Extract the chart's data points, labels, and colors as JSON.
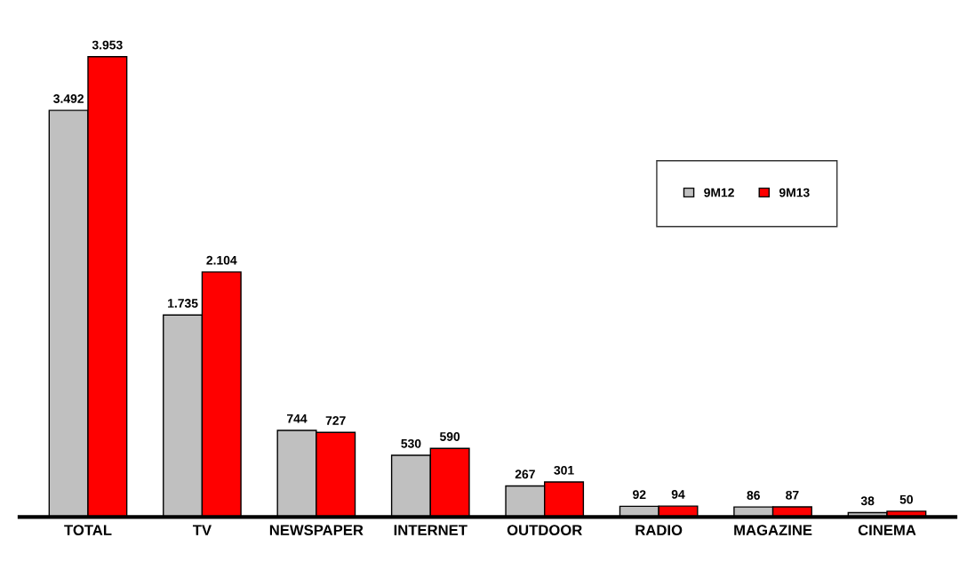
{
  "chart_data": {
    "type": "bar",
    "categories": [
      "TOTAL",
      "TV",
      "NEWSPAPER",
      "INTERNET",
      "OUTDOOR",
      "RADIO",
      "MAGAZINE",
      "CINEMA"
    ],
    "series": [
      {
        "name": "9M12",
        "color": "#c0c0c0",
        "values": [
          3492,
          1735,
          744,
          530,
          267,
          92,
          86,
          38
        ],
        "value_labels": [
          "3.492",
          "1.735",
          "744",
          "530",
          "267",
          "92",
          "86",
          "38"
        ]
      },
      {
        "name": "9M13",
        "color": "#ff0000",
        "values": [
          3953,
          2104,
          727,
          590,
          301,
          94,
          87,
          50
        ],
        "value_labels": [
          "3.953",
          "2.104",
          "727",
          "590",
          "301",
          "94",
          "87",
          "50"
        ]
      }
    ],
    "tick_labels": "x",
    "legend": "top right",
    "grid": false
  }
}
